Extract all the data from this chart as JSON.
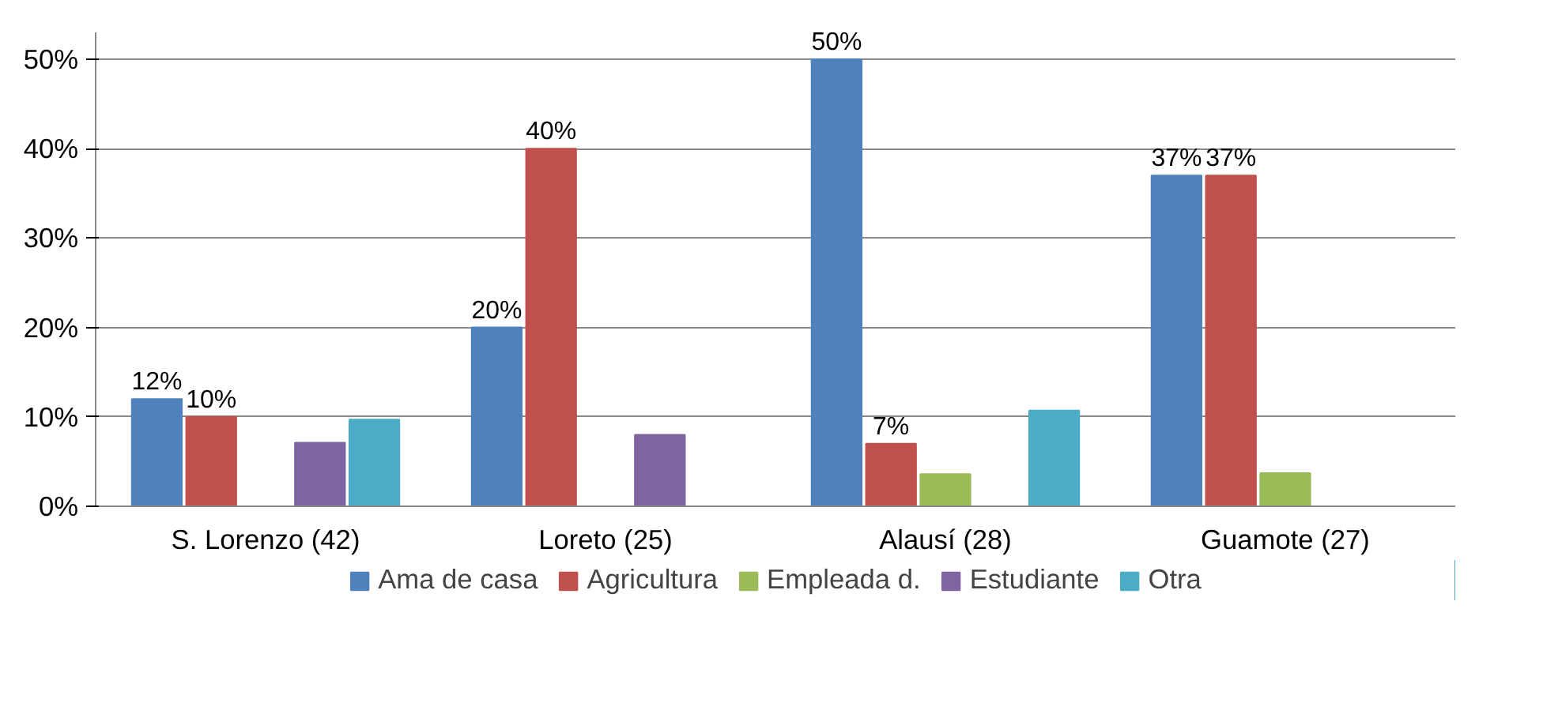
{
  "chart_data": {
    "type": "bar",
    "categories": [
      "S. Lorenzo (42)",
      "Loreto (25)",
      "Alausí (28)",
      "Guamote (27)"
    ],
    "series": [
      {
        "name": "Ama de casa",
        "color": "#4f81bd",
        "values": [
          12,
          20,
          50,
          37
        ],
        "value_labels": [
          "12%",
          "20%",
          "50%",
          "37%"
        ]
      },
      {
        "name": "Agricultura",
        "color": "#c0504d",
        "values": [
          10,
          40,
          7,
          37
        ],
        "value_labels": [
          "10%",
          "40%",
          "7%",
          "37%"
        ]
      },
      {
        "name": "Empleada d.",
        "color": "#9bbb59",
        "values": [
          null,
          null,
          3.6,
          3.7
        ]
      },
      {
        "name": "Estudiante",
        "color": "#8064a2",
        "values": [
          7.1,
          8,
          null,
          null
        ]
      },
      {
        "name": "Otra",
        "color": "#4bacc6",
        "values": [
          9.7,
          null,
          10.7,
          null
        ]
      }
    ],
    "ylim": [
      0,
      50
    ],
    "yticks": [
      {
        "value": 0,
        "label": "0%"
      },
      {
        "value": 10,
        "label": "10%"
      },
      {
        "value": 20,
        "label": "20%"
      },
      {
        "value": 30,
        "label": "30%"
      },
      {
        "value": 40,
        "label": "40%"
      },
      {
        "value": 50,
        "label": "50%"
      }
    ],
    "grid": "y",
    "legend": "bottom"
  }
}
